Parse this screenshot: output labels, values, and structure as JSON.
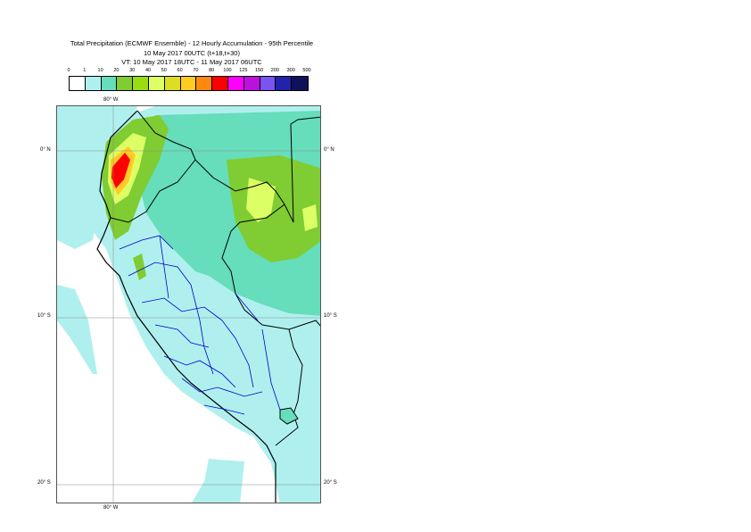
{
  "title": {
    "line1": "Total Precipitation (ECMWF Ensemble) - 12 Hourly Accumulation - 95th Percentile",
    "line2": "10 May 2017 00UTC (t+18,t+30)",
    "line3": "VT: 10 May 2017 18UTC - 11 May 2017 06UTC"
  },
  "legend": {
    "labels": [
      "0",
      "1",
      "10",
      "20",
      "30",
      "40",
      "50",
      "60",
      "70",
      "80",
      "100",
      "125",
      "150",
      "200",
      "300",
      "500"
    ],
    "colors": [
      "#ffffff",
      "#aff0ee",
      "#66ddbb",
      "#7fcc33",
      "#99dd11",
      "#ddff66",
      "#dddd22",
      "#ffcc22",
      "#ff8811",
      "#ff0000",
      "#ff00ff",
      "#bb11dd",
      "#7755ee",
      "#2222aa",
      "#11115a"
    ]
  },
  "axes": {
    "lon_top": "80° W",
    "lon_bottom": "80° W",
    "lat_0_left": "0° N",
    "lat_0_right": "0° N",
    "lat_10_left": "10° S",
    "lat_10_right": "10° S",
    "lat_20_left": "20° S",
    "lat_20_right": "20° S"
  },
  "map": {
    "region": "Peru and Ecuador",
    "colors": {
      "sea_light": "#aff0ee",
      "land_mid": "#66ddbb",
      "green": "#7fcc33",
      "yellow_green": "#99dd11",
      "yellow": "#ddff66",
      "orange": "#ffcc22",
      "red": "#ff0000",
      "border_country": "#000000",
      "border_region": "#0000cc"
    }
  }
}
